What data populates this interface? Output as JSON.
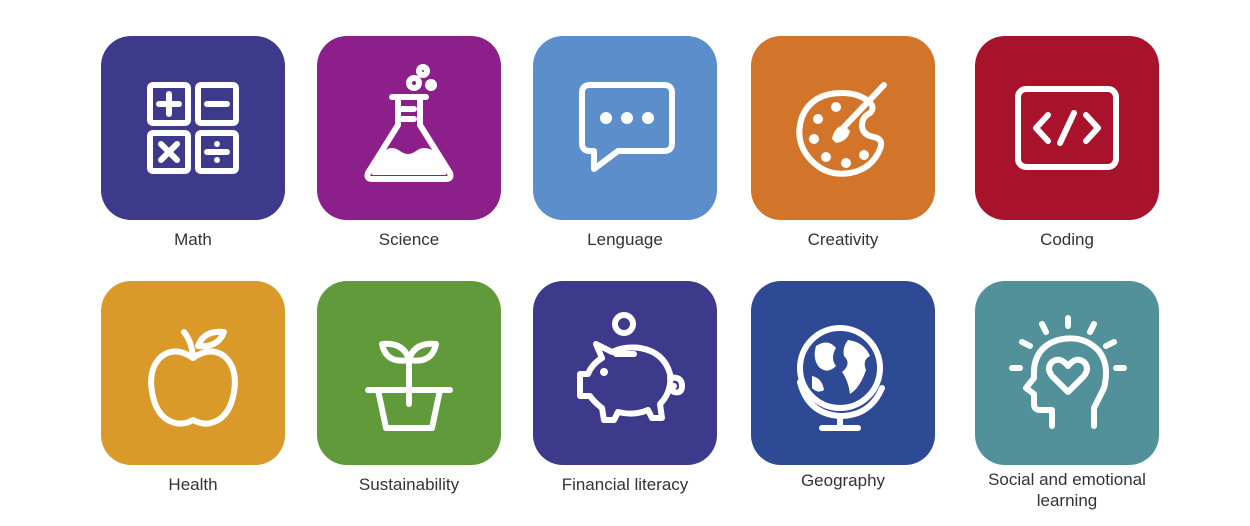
{
  "subjects": [
    {
      "label": "Math",
      "icon": "calculator-icon",
      "color": "#3d3a8c"
    },
    {
      "label": "Science",
      "icon": "flask-icon",
      "color": "#8c1f8a"
    },
    {
      "label": "Lenguage",
      "icon": "chat-bubble-icon",
      "color": "#5b8ecb"
    },
    {
      "label": "Creativity",
      "icon": "paint-palette-icon",
      "color": "#d2742a"
    },
    {
      "label": "Coding",
      "icon": "code-icon",
      "color": "#a8132b"
    },
    {
      "label": "Health",
      "icon": "apple-icon",
      "color": "#d99a2a"
    },
    {
      "label": "Sustainability",
      "icon": "plant-pot-icon",
      "color": "#609a3a"
    },
    {
      "label": "Financial literacy",
      "icon": "piggy-bank-icon",
      "color": "#3d3a8c"
    },
    {
      "label": "Geography",
      "icon": "globe-icon",
      "color": "#2f4a94"
    },
    {
      "label": "Social and emotional learning",
      "icon": "head-heart-icon",
      "color": "#52909a"
    }
  ]
}
